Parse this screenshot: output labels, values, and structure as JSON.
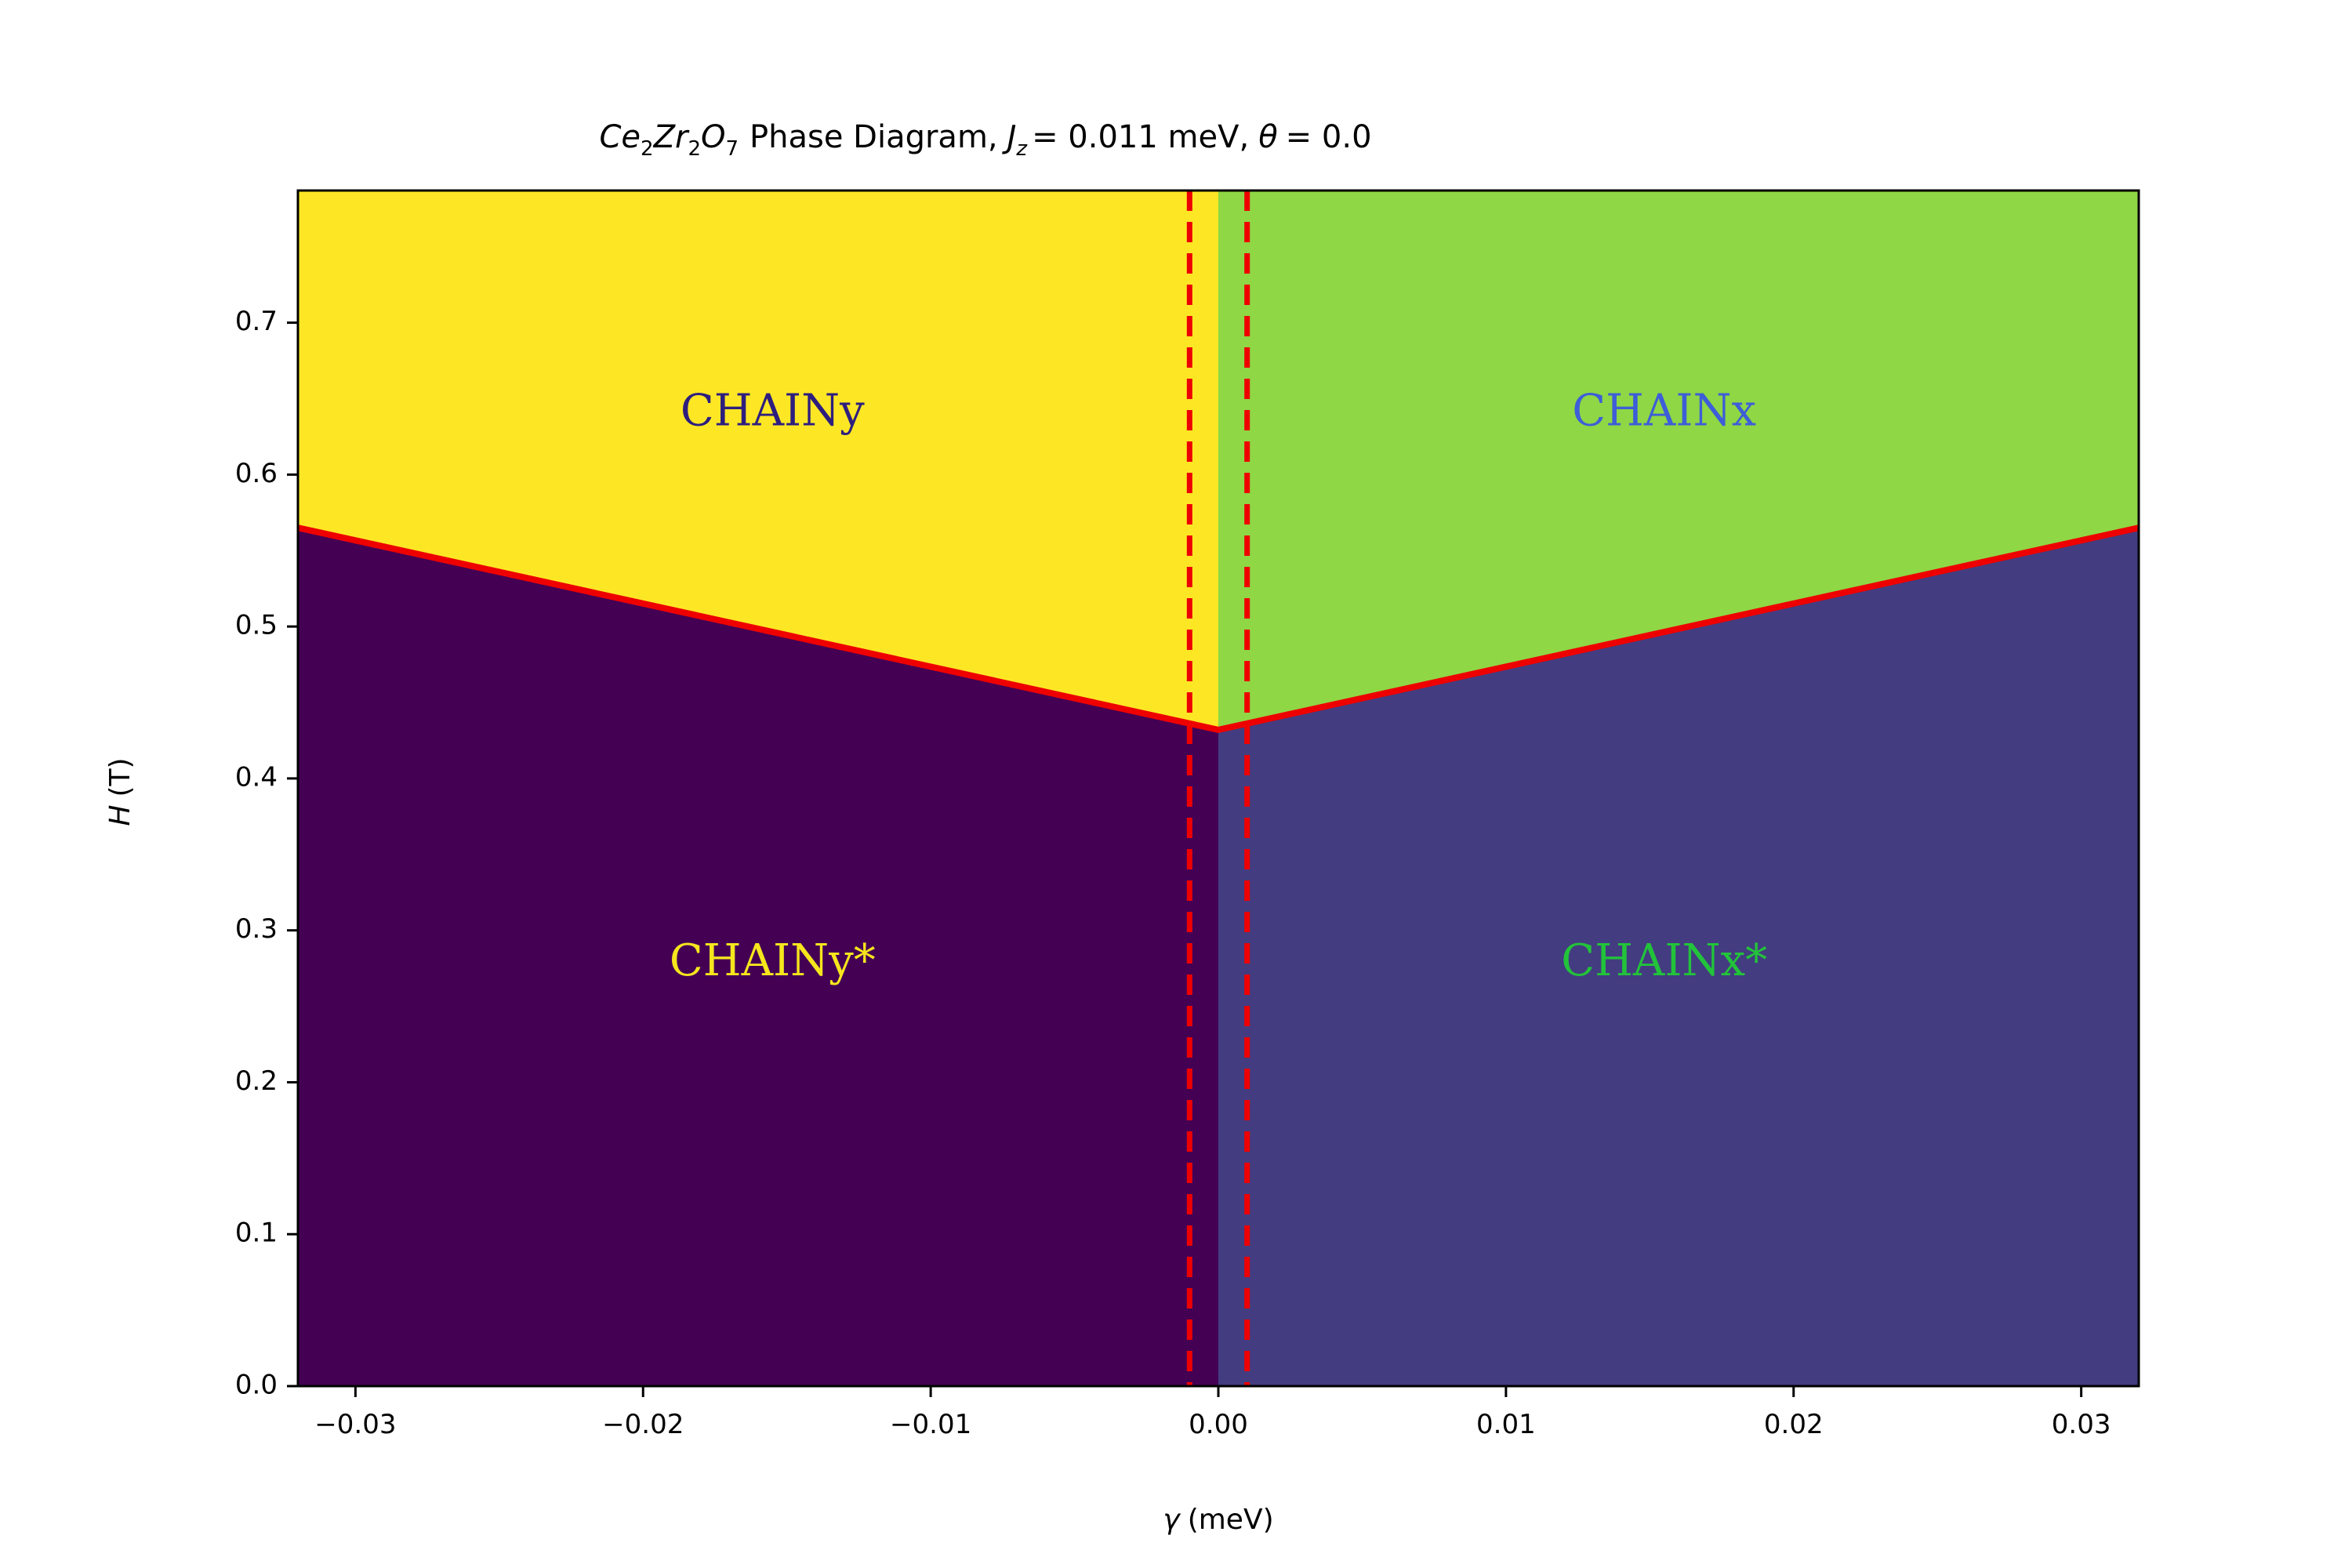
{
  "chart_data": {
    "type": "area",
    "title": {
      "compound": {
        "ce": "Ce",
        "ce_sub": "2",
        "zr": "Zr",
        "zr_sub": "2",
        "o": "O",
        "o_sub": "7"
      },
      "text1": "Phase Diagram,",
      "jz_var": "J",
      "jz_sub": "z",
      "jz_val": "= 0.011 meV,",
      "theta_var": "θ",
      "theta_val": "= 0.0"
    },
    "xlabel": {
      "var": "γ",
      "unit": "(meV)"
    },
    "ylabel": {
      "var": "H",
      "unit": "(T)"
    },
    "xlim": [
      -0.032,
      0.032
    ],
    "ylim": [
      0.0,
      0.787
    ],
    "x_ticks": [
      -0.03,
      -0.02,
      -0.01,
      0.0,
      0.01,
      0.02,
      0.03
    ],
    "x_tick_labels": [
      "−0.03",
      "−0.02",
      "−0.01",
      "0.00",
      "0.01",
      "0.02",
      "0.03"
    ],
    "y_ticks": [
      0.0,
      0.1,
      0.2,
      0.3,
      0.4,
      0.5,
      0.6,
      0.7
    ],
    "y_tick_labels": [
      "0.0",
      "0.1",
      "0.2",
      "0.3",
      "0.4",
      "0.5",
      "0.6",
      "0.7"
    ],
    "phase_boundary": {
      "x": [
        -0.032,
        0.0,
        0.032
      ],
      "y": [
        0.565,
        0.432,
        0.565
      ],
      "color": "#ee0000"
    },
    "vertical_dashed_lines": [
      {
        "x": -0.001,
        "color": "#ee0000"
      },
      {
        "x": 0.001,
        "color": "#ee0000"
      }
    ],
    "regions": [
      {
        "name": "CHAINy",
        "side": "left",
        "part": "upper",
        "fill": "#fde725",
        "text_color": "#2d1e7e",
        "label_x": -0.0155,
        "label_y": 0.64
      },
      {
        "name": "CHAINx",
        "side": "right",
        "part": "upper",
        "fill": "#8fd744",
        "text_color": "#3d5ed8",
        "label_x": 0.0155,
        "label_y": 0.64
      },
      {
        "name": "CHAINy*",
        "side": "left",
        "part": "lower",
        "fill": "#440154",
        "text_color": "#f5e61d",
        "label_x": -0.0155,
        "label_y": 0.278
      },
      {
        "name": "CHAINx*",
        "side": "right",
        "part": "lower",
        "fill": "#433c80",
        "text_color": "#22c33a",
        "label_x": 0.0155,
        "label_y": 0.278
      }
    ]
  }
}
